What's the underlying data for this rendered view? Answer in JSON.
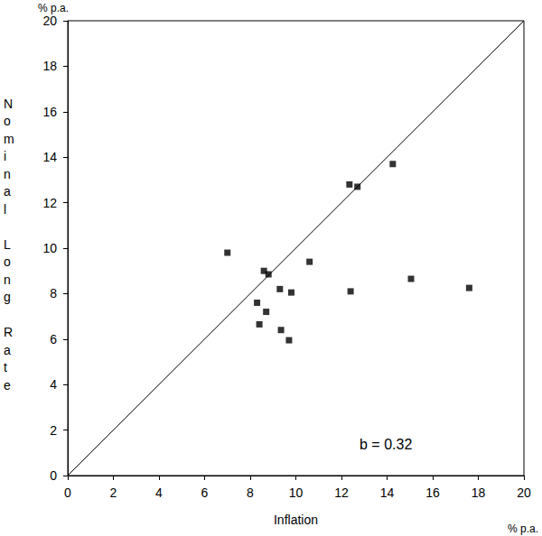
{
  "chart_data": {
    "type": "scatter",
    "x_label": "Inflation",
    "y_label": "Nominal Long Rate",
    "x_unit": "% p.a.",
    "y_unit": "% p.a.",
    "annotations": [
      "b = 0.32"
    ],
    "x": [
      7.0,
      8.6,
      8.8,
      8.3,
      8.4,
      8.7,
      9.3,
      9.8,
      9.35,
      9.7,
      10.6,
      12.35,
      12.7,
      14.25,
      12.4,
      15.05,
      17.6
    ],
    "values": [
      9.8,
      9.0,
      8.85,
      7.6,
      6.65,
      7.2,
      8.2,
      8.05,
      6.4,
      5.95,
      9.4,
      12.8,
      12.7,
      13.7,
      8.1,
      8.65,
      8.25
    ],
    "color": "#000000",
    "marker": "square",
    "xlim": [
      0,
      20
    ],
    "ylim": [
      0,
      20
    ],
    "xticks": [
      0,
      2,
      4,
      6,
      8,
      10,
      12,
      14,
      16,
      18,
      20
    ],
    "yticks": [
      0,
      2,
      4,
      6,
      8,
      10,
      12,
      14,
      16,
      18,
      20
    ],
    "grid": false
  }
}
